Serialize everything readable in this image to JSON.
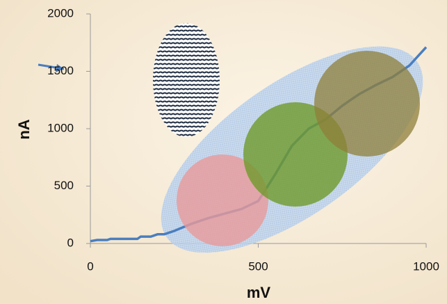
{
  "chart_data": {
    "type": "line",
    "x_label": "mV",
    "y_label": "nA",
    "x": [
      0,
      20,
      50,
      60,
      100,
      140,
      150,
      180,
      200,
      220,
      250,
      300,
      350,
      400,
      450,
      500,
      550,
      600,
      650,
      700,
      750,
      800,
      850,
      900,
      950,
      1000
    ],
    "series": [
      {
        "color": "#4a7ebf",
        "values": [
          20,
          30,
          30,
          40,
          40,
          40,
          60,
          60,
          80,
          80,
          110,
          170,
          220,
          260,
          300,
          370,
          600,
          850,
          1000,
          1080,
          1200,
          1300,
          1380,
          1450,
          1550,
          1710
        ]
      }
    ],
    "xlim": [
      0,
      1000
    ],
    "xticks": [
      0,
      500,
      1000
    ],
    "ylim": [
      0,
      2000
    ],
    "yticks": [
      0,
      500,
      1000,
      1500,
      2000
    ]
  }
}
